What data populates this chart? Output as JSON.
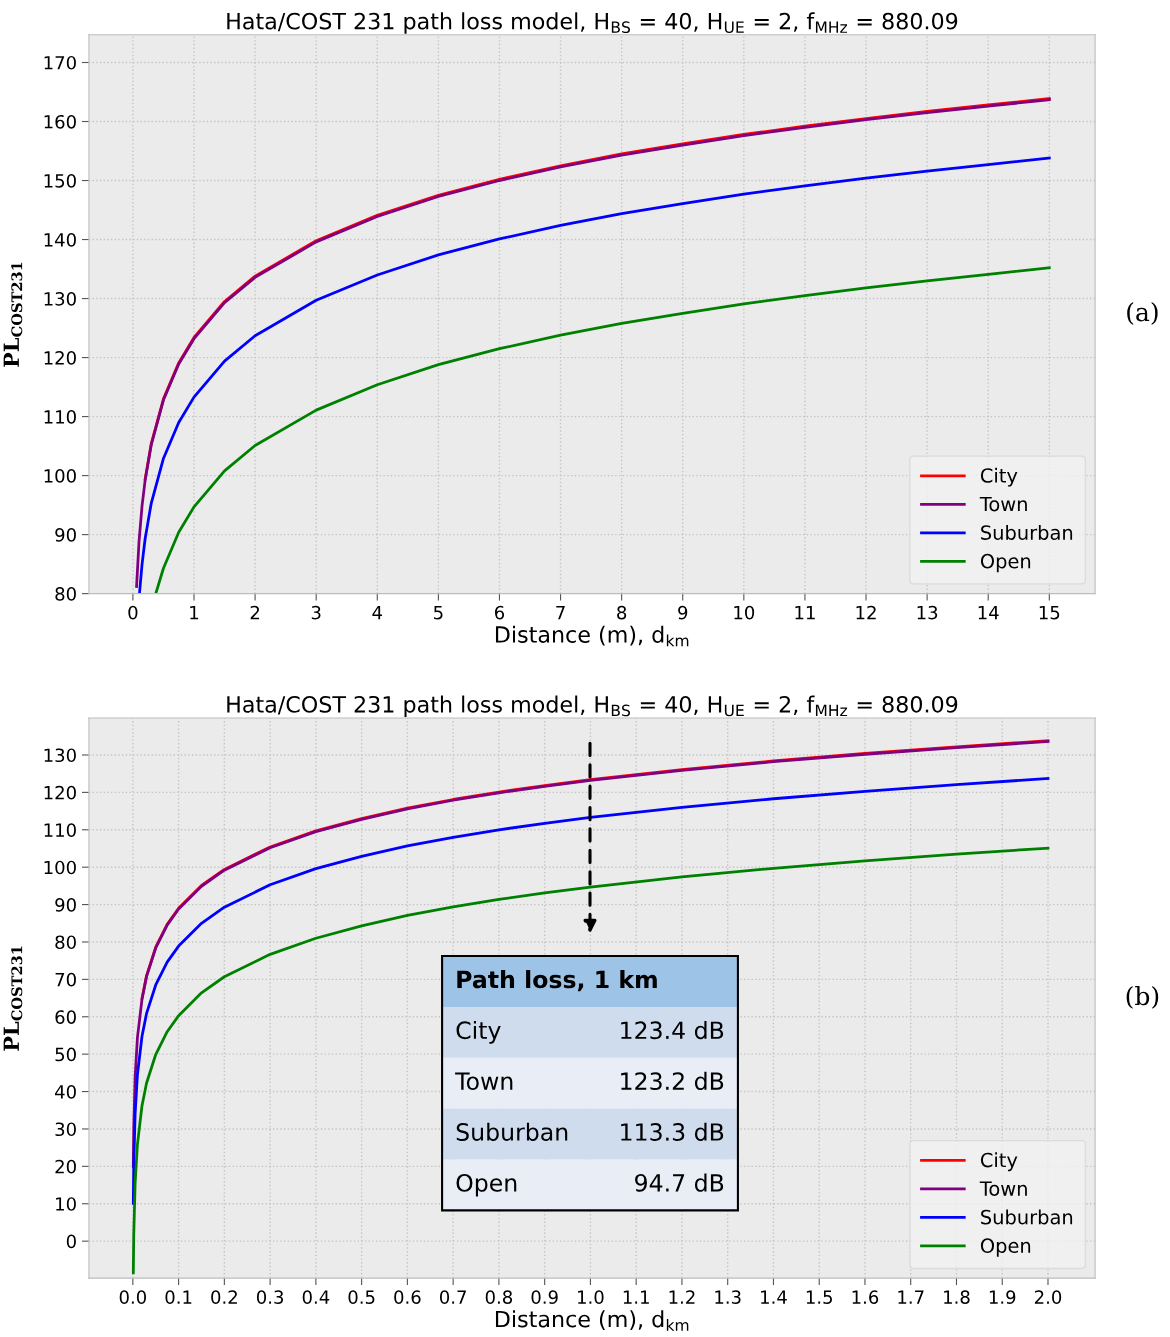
{
  "chart_data": [
    {
      "type": "line",
      "title": "Hata/COST 231 path loss model, H$_{BS}$ = 40, H$_{UE}$ = 2, f$_{MHz}$ = 880.09",
      "xlabel": "Distance (m), d$_{km}$",
      "ylabel": "PL$_{COST231}$",
      "xlim": [
        -0.72,
        15.75
      ],
      "ylim": [
        80,
        174.7
      ],
      "xticks": [
        0,
        1,
        2,
        3,
        4,
        5,
        6,
        7,
        8,
        9,
        10,
        11,
        12,
        13,
        14,
        15
      ],
      "yticks": [
        80,
        90,
        100,
        110,
        120,
        130,
        140,
        150,
        160,
        170
      ],
      "grid": true,
      "legend": "bottom right",
      "series": [
        {
          "name": "City",
          "color": "#ff0000",
          "x": [
            0.2,
            0.3,
            0.5,
            0.75,
            1,
            1.5,
            2,
            3,
            4,
            5,
            6,
            7,
            8,
            9,
            10,
            11,
            12,
            13,
            14,
            15
          ],
          "values": [
            99.4,
            105.4,
            113.0,
            119.1,
            123.4,
            129.5,
            133.8,
            139.8,
            144.1,
            147.5,
            150.2,
            152.5,
            154.5,
            156.2,
            157.8,
            159.2,
            160.5,
            161.7,
            162.8,
            163.9
          ]
        },
        {
          "name": "Town",
          "color": "#800080",
          "x": [
            0.06,
            0.1,
            0.15,
            0.2,
            0.3,
            0.5,
            0.75,
            1,
            1.5,
            2,
            3,
            4,
            5,
            6,
            7,
            8,
            9,
            10,
            11,
            12,
            13,
            14,
            15
          ],
          "values": [
            81.2,
            88.8,
            94.9,
            99.2,
            105.2,
            112.8,
            118.9,
            123.2,
            129.3,
            133.6,
            139.6,
            143.9,
            147.3,
            150.0,
            152.3,
            154.3,
            156.0,
            157.6,
            159.0,
            160.3,
            161.5,
            162.6,
            163.7
          ]
        },
        {
          "name": "Suburban",
          "color": "#0000ff",
          "x": [
            0.11,
            0.15,
            0.2,
            0.3,
            0.5,
            0.75,
            1,
            1.5,
            2,
            3,
            4,
            5,
            6,
            7,
            8,
            9,
            10,
            11,
            12,
            13,
            14,
            15
          ],
          "values": [
            80.3,
            85.0,
            89.3,
            95.3,
            102.9,
            109.0,
            113.3,
            119.4,
            123.7,
            129.7,
            134.0,
            137.4,
            140.1,
            142.4,
            144.4,
            146.1,
            147.7,
            149.1,
            150.4,
            151.6,
            152.7,
            153.8
          ]
        },
        {
          "name": "Open",
          "color": "#008000",
          "x": [
            0.38,
            0.5,
            0.75,
            1,
            1.5,
            2,
            3,
            4,
            5,
            6,
            7,
            8,
            9,
            10,
            11,
            12,
            13,
            14,
            15
          ],
          "values": [
            80.2,
            84.3,
            90.4,
            94.7,
            100.8,
            105.1,
            111.1,
            115.4,
            118.8,
            121.5,
            123.8,
            125.8,
            127.5,
            129.1,
            130.5,
            131.8,
            133.0,
            134.1,
            135.2
          ]
        }
      ],
      "annotations": [
        "(a)"
      ]
    },
    {
      "type": "line",
      "title": "Hata/COST 231 path loss model, H$_{BS}$ = 40, H$_{UE}$ = 2, f$_{MHz}$ = 880.09",
      "xlabel": "Distance (m), d$_{km}$",
      "ylabel": "PL$_{COST231}$",
      "xlim": [
        -0.096,
        2.103
      ],
      "ylim": [
        -9.9,
        139.9
      ],
      "xticks": [
        {
          "value": 0,
          "label": "0.0"
        },
        0.1,
        0.2,
        0.3,
        0.4,
        0.5,
        0.6,
        0.7,
        0.8,
        0.9,
        {
          "value": 1,
          "label": "1.0"
        },
        1.1,
        1.2,
        1.3,
        1.4,
        1.5,
        1.6,
        1.7,
        1.8,
        1.9,
        {
          "value": 2,
          "label": "2.0"
        }
      ],
      "yticks": [
        0,
        10,
        20,
        30,
        40,
        50,
        60,
        70,
        80,
        90,
        100,
        110,
        120,
        130
      ],
      "grid": true,
      "legend": "bottom right",
      "series": [
        {
          "name": "City",
          "color": "#ff0000",
          "x": [
            0.02,
            0.03,
            0.05,
            0.075,
            0.1,
            0.15,
            0.2,
            0.3,
            0.4,
            0.5,
            0.6,
            0.7,
            0.8,
            0.9,
            1.0,
            1.2,
            1.4,
            1.6,
            1.8,
            2.0
          ],
          "values": [
            64.9,
            71.0,
            78.6,
            84.7,
            89.0,
            95.1,
            99.4,
            105.4,
            109.7,
            113.0,
            115.8,
            118.1,
            120.1,
            121.8,
            123.4,
            126.1,
            128.4,
            130.4,
            132.2,
            133.8
          ]
        },
        {
          "name": "Town",
          "color": "#800080",
          "x": [
            0.001,
            0.002,
            0.005,
            0.01,
            0.02,
            0.03,
            0.05,
            0.075,
            0.1,
            0.15,
            0.2,
            0.3,
            0.4,
            0.5,
            0.6,
            0.7,
            0.8,
            0.9,
            1.0,
            1.2,
            1.4,
            1.6,
            1.8,
            2.0
          ],
          "values": [
            20.0,
            30.3,
            44.0,
            54.4,
            64.7,
            70.8,
            78.4,
            84.5,
            88.8,
            94.9,
            99.2,
            105.2,
            109.5,
            112.8,
            115.6,
            117.9,
            119.9,
            121.6,
            123.2,
            125.9,
            128.2,
            130.2,
            132.0,
            133.6
          ]
        },
        {
          "name": "Suburban",
          "color": "#0000ff",
          "x": [
            0.001,
            0.002,
            0.005,
            0.01,
            0.02,
            0.03,
            0.05,
            0.075,
            0.1,
            0.15,
            0.2,
            0.3,
            0.4,
            0.5,
            0.6,
            0.7,
            0.8,
            0.9,
            1.0,
            1.2,
            1.4,
            1.6,
            1.8,
            2.0
          ],
          "values": [
            10.1,
            20.4,
            34.1,
            44.5,
            54.8,
            60.9,
            68.5,
            74.6,
            78.9,
            85.0,
            89.3,
            95.3,
            99.6,
            102.9,
            105.7,
            108.0,
            110.0,
            111.7,
            113.3,
            116.0,
            118.3,
            120.3,
            122.1,
            123.7
          ]
        },
        {
          "name": "Open",
          "color": "#008000",
          "x": [
            0.001,
            0.002,
            0.005,
            0.01,
            0.02,
            0.03,
            0.05,
            0.075,
            0.1,
            0.15,
            0.2,
            0.3,
            0.4,
            0.5,
            0.6,
            0.7,
            0.8,
            0.9,
            1.0,
            1.2,
            1.4,
            1.6,
            1.8,
            2.0
          ],
          "values": [
            -8.5,
            1.8,
            15.5,
            25.9,
            36.2,
            42.3,
            49.9,
            56.0,
            60.3,
            66.4,
            70.7,
            76.7,
            81.0,
            84.3,
            87.1,
            89.4,
            91.4,
            93.1,
            94.7,
            97.4,
            99.7,
            101.7,
            103.5,
            105.1
          ]
        }
      ],
      "annotations": [
        "Path loss, 1 km",
        "City",
        "123.4 dB",
        "Town",
        "123.2 dB",
        "Suburban",
        "113.3 dB",
        "Open",
        "94.7 dB",
        "(b)"
      ]
    }
  ]
}
